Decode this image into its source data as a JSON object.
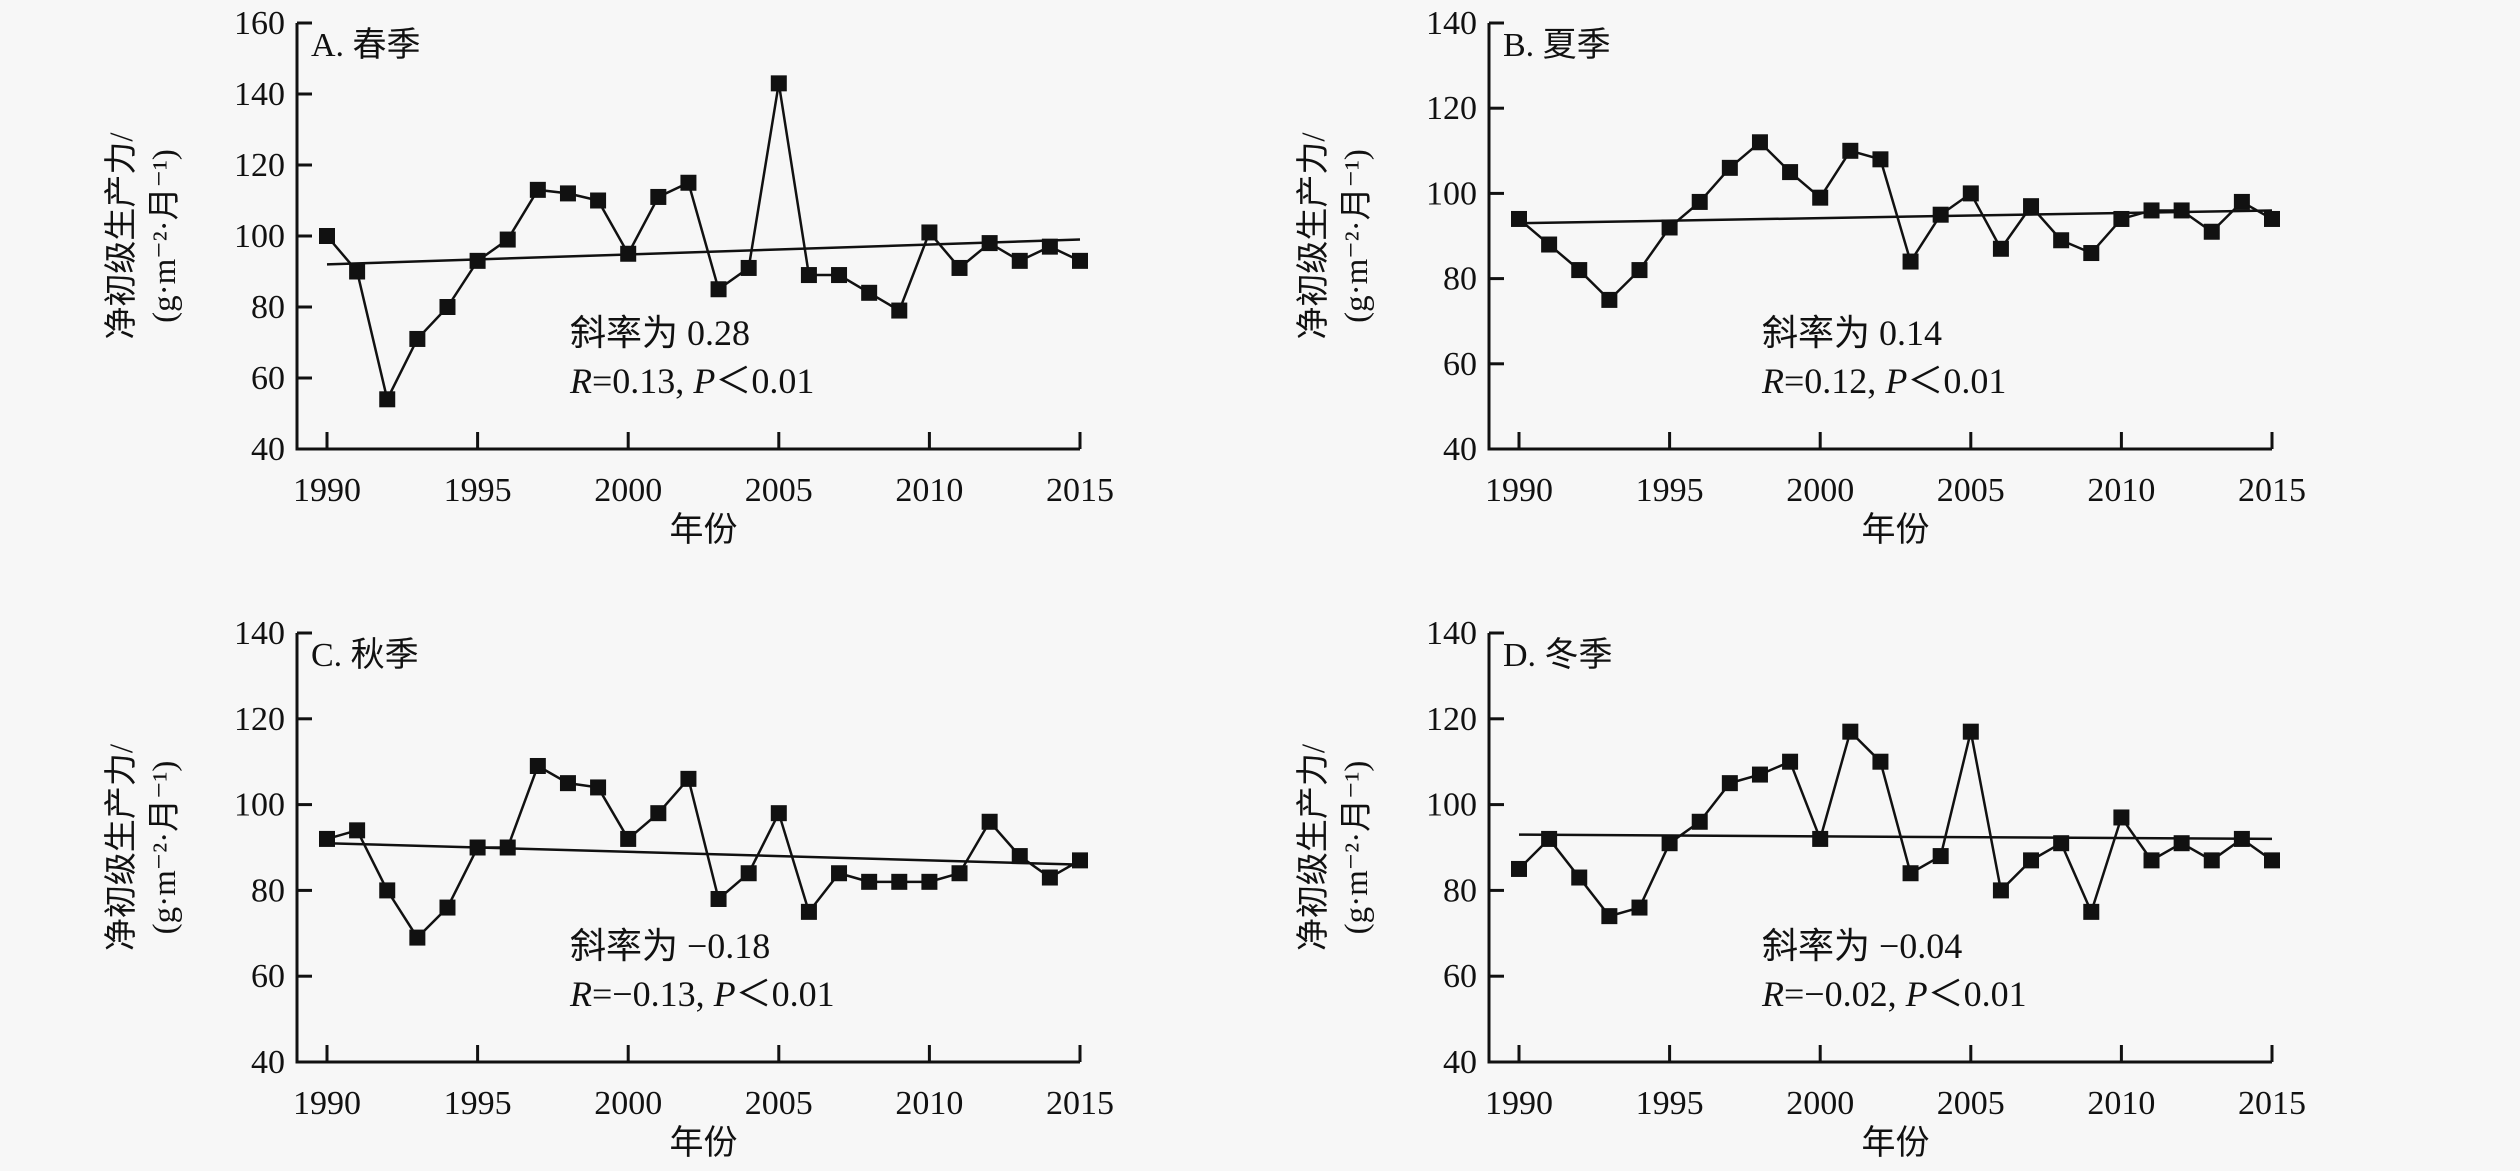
{
  "chart_data": [
    {
      "type": "line",
      "title": "A. 春季",
      "xlabel": "年份",
      "ylabel": [
        "净初级生产力/",
        "(g·m⁻²·月⁻¹)"
      ],
      "xlim": [
        1990,
        2015
      ],
      "xticks": [
        1990,
        1995,
        2000,
        2005,
        2010,
        2015
      ],
      "ylim": [
        40,
        160
      ],
      "yticks": [
        40,
        60,
        80,
        100,
        120,
        140,
        160
      ],
      "x": [
        1990,
        1991,
        1992,
        1993,
        1994,
        1995,
        1996,
        1997,
        1998,
        1999,
        2000,
        2001,
        2002,
        2003,
        2004,
        2005,
        2006,
        2007,
        2008,
        2009,
        2010,
        2011,
        2012,
        2013,
        2014,
        2015
      ],
      "values": [
        100,
        90,
        54,
        71,
        80,
        93,
        99,
        113,
        112,
        110,
        95,
        111,
        115,
        85,
        91,
        143,
        89,
        89,
        84,
        79,
        101,
        91,
        98,
        93,
        97,
        93
      ],
      "trend": [
        92,
        99
      ],
      "slope_text": "斜率为 0.28",
      "stat_text": [
        "R",
        "=0.13, ",
        "P",
        "＜0.01"
      ],
      "marker": "square",
      "grid": false
    },
    {
      "type": "line",
      "title": "B. 夏季",
      "xlabel": "年份",
      "ylabel": [
        "净初级生产力/",
        "(g·m⁻²·月⁻¹)"
      ],
      "xlim": [
        1990,
        2015
      ],
      "xticks": [
        1990,
        1995,
        2000,
        2005,
        2010,
        2015
      ],
      "ylim": [
        40,
        140
      ],
      "yticks": [
        40,
        60,
        80,
        100,
        120,
        140
      ],
      "x": [
        1990,
        1991,
        1992,
        1993,
        1994,
        1995,
        1996,
        1997,
        1998,
        1999,
        2000,
        2001,
        2002,
        2003,
        2004,
        2005,
        2006,
        2007,
        2008,
        2009,
        2010,
        2011,
        2012,
        2013,
        2014,
        2015
      ],
      "values": [
        94,
        88,
        82,
        75,
        82,
        92,
        98,
        106,
        112,
        105,
        99,
        110,
        108,
        84,
        95,
        100,
        87,
        97,
        89,
        86,
        94,
        96,
        96,
        91,
        98,
        94
      ],
      "trend": [
        93,
        96
      ],
      "slope_text": "斜率为 0.14",
      "stat_text": [
        "R",
        "=0.12, ",
        "P",
        "＜0.01"
      ],
      "marker": "square",
      "grid": false
    },
    {
      "type": "line",
      "title": "C. 秋季",
      "xlabel": "年份",
      "ylabel": [
        "净初级生产力/",
        "(g·m⁻²·月⁻¹)"
      ],
      "xlim": [
        1990,
        2015
      ],
      "xticks": [
        1990,
        1995,
        2000,
        2005,
        2010,
        2015
      ],
      "ylim": [
        40,
        140
      ],
      "yticks": [
        40,
        60,
        80,
        100,
        120,
        140
      ],
      "x": [
        1990,
        1991,
        1992,
        1993,
        1994,
        1995,
        1996,
        1997,
        1998,
        1999,
        2000,
        2001,
        2002,
        2003,
        2004,
        2005,
        2006,
        2007,
        2008,
        2009,
        2010,
        2011,
        2012,
        2013,
        2014,
        2015
      ],
      "values": [
        92,
        94,
        80,
        69,
        76,
        90,
        90,
        109,
        105,
        104,
        92,
        98,
        106,
        78,
        84,
        98,
        75,
        84,
        82,
        82,
        82,
        84,
        96,
        88,
        83,
        87
      ],
      "trend": [
        91,
        86
      ],
      "slope_text": "斜率为 −0.18",
      "stat_text": [
        "R",
        "=−0.13, ",
        "P",
        "＜0.01"
      ],
      "marker": "square",
      "grid": false
    },
    {
      "type": "line",
      "title": "D. 冬季",
      "xlabel": "年份",
      "ylabel": [
        "净初级生产力/",
        "(g·m⁻²·月⁻¹)"
      ],
      "xlim": [
        1990,
        2015
      ],
      "xticks": [
        1990,
        1995,
        2000,
        2005,
        2010,
        2015
      ],
      "ylim": [
        40,
        140
      ],
      "yticks": [
        40,
        60,
        80,
        100,
        120,
        140
      ],
      "x": [
        1990,
        1991,
        1992,
        1993,
        1994,
        1995,
        1996,
        1997,
        1998,
        1999,
        2000,
        2001,
        2002,
        2003,
        2004,
        2005,
        2006,
        2007,
        2008,
        2009,
        2010,
        2011,
        2012,
        2013,
        2014,
        2015
      ],
      "values": [
        85,
        92,
        83,
        74,
        76,
        91,
        96,
        105,
        107,
        110,
        92,
        117,
        110,
        84,
        88,
        117,
        80,
        87,
        91,
        75,
        97,
        87,
        91,
        87,
        92,
        87
      ],
      "trend": [
        93,
        92
      ],
      "slope_text": "斜率为 −0.04",
      "stat_text": [
        "R",
        "=−0.02, ",
        "P",
        "＜0.01"
      ],
      "marker": "square",
      "grid": false
    }
  ]
}
